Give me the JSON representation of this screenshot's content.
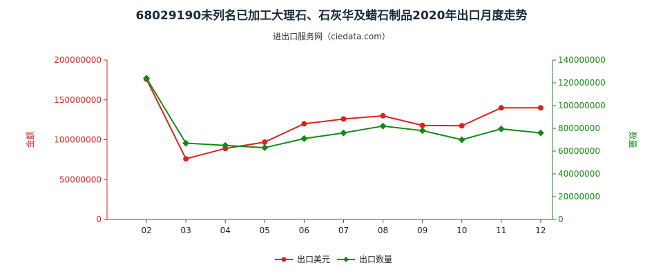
{
  "title": "68029190未列名已加工大理石、石灰华及蜡石制品2020年出口月度走势",
  "subtitle": "进出口服务网（ciedata.com）",
  "colors": {
    "usd": "#e02020",
    "qty": "#138a13"
  },
  "chart_data": {
    "type": "line",
    "categories": [
      "02",
      "03",
      "04",
      "05",
      "06",
      "07",
      "08",
      "09",
      "10",
      "11",
      "12"
    ],
    "series": [
      {
        "name": "出口美元",
        "axis": "left",
        "color": "#e02020",
        "values": [
          176000000,
          76000000,
          89000000,
          97000000,
          120000000,
          126000000,
          130000000,
          118000000,
          117500000,
          140000000,
          140000000
        ]
      },
      {
        "name": "出口数量",
        "axis": "right",
        "color": "#138a13",
        "values": [
          124000000,
          67000000,
          65000000,
          63000000,
          71000000,
          76000000,
          82000000,
          78000000,
          70000000,
          79500000,
          76000000
        ]
      }
    ],
    "yleft": {
      "label": "金额",
      "lim": [
        0,
        200000000
      ],
      "ticks": [
        "0",
        "50000000",
        "100000000",
        "150000000",
        "200000000"
      ]
    },
    "yright": {
      "label": "数量",
      "lim": [
        0,
        140000000
      ],
      "ticks": [
        "0",
        "20000000",
        "40000000",
        "60000000",
        "80000000",
        "100000000",
        "120000000",
        "140000000"
      ]
    },
    "grid": false,
    "legend": "bottom-center"
  }
}
